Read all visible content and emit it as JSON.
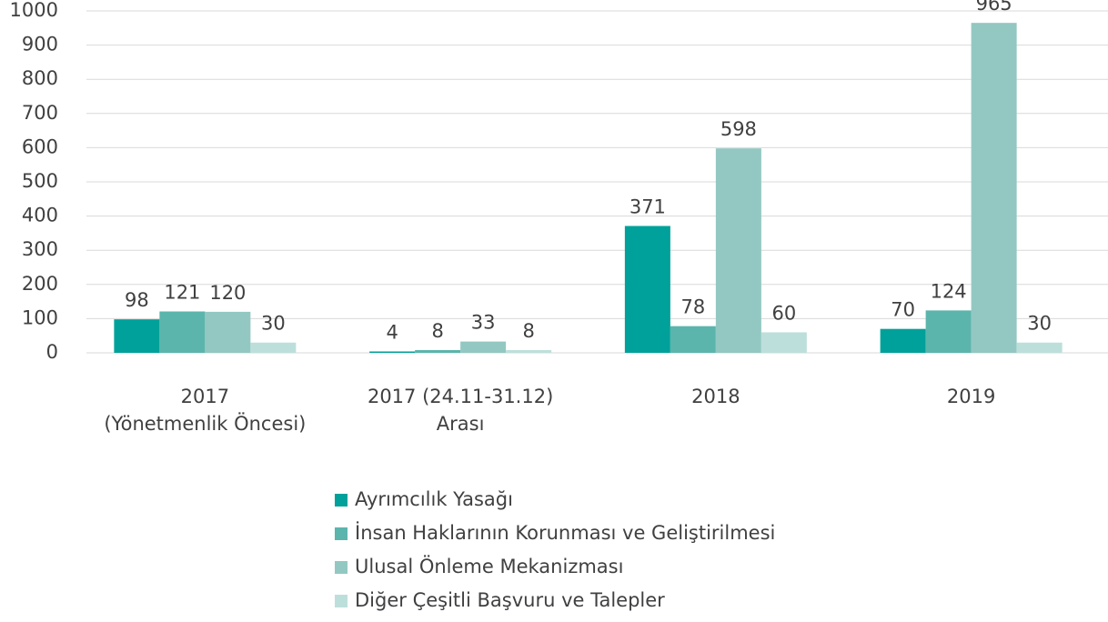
{
  "chart_data": {
    "type": "bar",
    "categories": [
      "2017\n(Yönetmenlik Öncesi)",
      "2017 (24.11-31.12)\nArası",
      "2018",
      "2019"
    ],
    "series": [
      {
        "name": "Ayrımcılık Yasağı",
        "color": "#00a19a",
        "values": [
          98,
          4,
          371,
          70
        ]
      },
      {
        "name": "İnsan Haklarının Korunması ve Geliştirilmesi",
        "color": "#5bb5ac",
        "values": [
          121,
          8,
          78,
          124
        ]
      },
      {
        "name": "Ulusal Önleme Mekanizması",
        "color": "#93c8c2",
        "values": [
          120,
          33,
          598,
          965
        ]
      },
      {
        "name": "Diğer Çeşitli Başvuru ve Talepler",
        "color": "#bddfdb",
        "values": [
          30,
          8,
          60,
          30
        ]
      }
    ],
    "ylim": [
      0,
      1000
    ],
    "yticks": [
      0,
      100,
      200,
      300,
      400,
      500,
      600,
      700,
      800,
      900,
      1000
    ],
    "grid": true,
    "legend": "bottom"
  }
}
